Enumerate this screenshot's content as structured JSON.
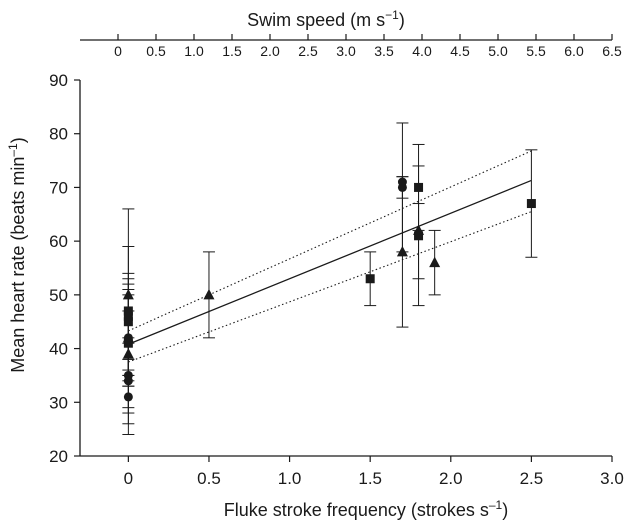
{
  "chart_data": {
    "type": "scatter",
    "x_axis": {
      "label": "Fluke stroke frequency (strokes s–1)",
      "label_main": "Fluke stroke frequency (strokes s",
      "label_sup": "–1",
      "label_end": ")",
      "range": [
        -0.3,
        3.0
      ],
      "ticks": [
        "0",
        "0.5",
        "1.0",
        "1.5",
        "2.0",
        "2.5",
        "3.0"
      ],
      "tick_values": [
        0,
        0.5,
        1.0,
        1.5,
        2.0,
        2.5,
        3.0
      ]
    },
    "x2_axis": {
      "label": "Swim speed (m s−1)",
      "label_main": "Swim speed (m s",
      "label_sup": "−1",
      "label_end": ")",
      "range": [
        -0.5,
        6.5
      ],
      "ticks": [
        "0",
        "0.5",
        "1.0",
        "1.5",
        "2.0",
        "2.5",
        "3.0",
        "3.5",
        "4.0",
        "4.5",
        "5.0",
        "5.5",
        "6.0",
        "6.5"
      ],
      "tick_values": [
        0,
        0.5,
        1.0,
        1.5,
        2.0,
        2.5,
        3.0,
        3.5,
        4.0,
        4.5,
        5.0,
        5.5,
        6.0,
        6.5
      ]
    },
    "y_axis": {
      "label": "Mean heart rate (beats min–1)",
      "label_main": "Mean heart rate (beats min",
      "label_sup": "–1",
      "label_end": ")",
      "range": [
        20,
        90
      ],
      "ticks": [
        "20",
        "30",
        "40",
        "50",
        "60",
        "70",
        "80",
        "90"
      ],
      "tick_values": [
        20,
        30,
        40,
        50,
        60,
        70,
        80,
        90
      ]
    },
    "grid": false,
    "legend": "none",
    "series": [
      {
        "marker": "square",
        "points": [
          {
            "x": 0,
            "y": 47,
            "low": 35,
            "high": 59
          },
          {
            "x": 0,
            "y": 46,
            "low": 38,
            "high": 54
          },
          {
            "x": 0,
            "y": 45,
            "low": 36,
            "high": 53
          },
          {
            "x": 0,
            "y": 41,
            "low": 35,
            "high": 47
          },
          {
            "x": 1.5,
            "y": 53,
            "low": 48,
            "high": 58
          },
          {
            "x": 1.8,
            "y": 70,
            "low": 62,
            "high": 78
          },
          {
            "x": 1.8,
            "y": 61,
            "low": 48,
            "high": 74
          },
          {
            "x": 2.5,
            "y": 67,
            "low": 57,
            "high": 77
          }
        ]
      },
      {
        "marker": "circle",
        "points": [
          {
            "x": 0,
            "y": 42,
            "low": 33,
            "high": 52
          },
          {
            "x": 0,
            "y": 35,
            "low": 29,
            "high": 41
          },
          {
            "x": 0,
            "y": 34,
            "low": 26,
            "high": 42
          },
          {
            "x": 0,
            "y": 31,
            "low": 24,
            "high": 38
          },
          {
            "x": 1.7,
            "y": 71,
            "low": 68,
            "high": 72
          },
          {
            "x": 1.7,
            "y": 70,
            "low": 58,
            "high": 82
          }
        ]
      },
      {
        "marker": "triangle",
        "points": [
          {
            "x": 0,
            "y": 50,
            "low": 34,
            "high": 66
          },
          {
            "x": 0,
            "y": 42,
            "low": 33,
            "high": 51
          },
          {
            "x": 0,
            "y": 39,
            "low": 28,
            "high": 50
          },
          {
            "x": 0.5,
            "y": 50,
            "low": 42,
            "high": 58
          },
          {
            "x": 1.7,
            "y": 58,
            "low": 44,
            "high": 72
          },
          {
            "x": 1.8,
            "y": 62,
            "low": 53,
            "high": 67
          },
          {
            "x": 1.9,
            "y": 56,
            "low": 50,
            "high": 62
          }
        ]
      }
    ],
    "regression": {
      "x": [
        0,
        2.5
      ],
      "y": [
        40.8,
        71.3
      ],
      "style": "solid"
    },
    "confidence_upper": {
      "x": [
        0,
        2.5
      ],
      "y": [
        43.3,
        76.8
      ],
      "style": "dotted"
    },
    "confidence_lower": {
      "x": [
        0,
        2.5
      ],
      "y": [
        37.5,
        65.5
      ],
      "style": "dotted"
    },
    "colors": {
      "ink": "#1a1a1a",
      "background": "#ffffff"
    }
  }
}
